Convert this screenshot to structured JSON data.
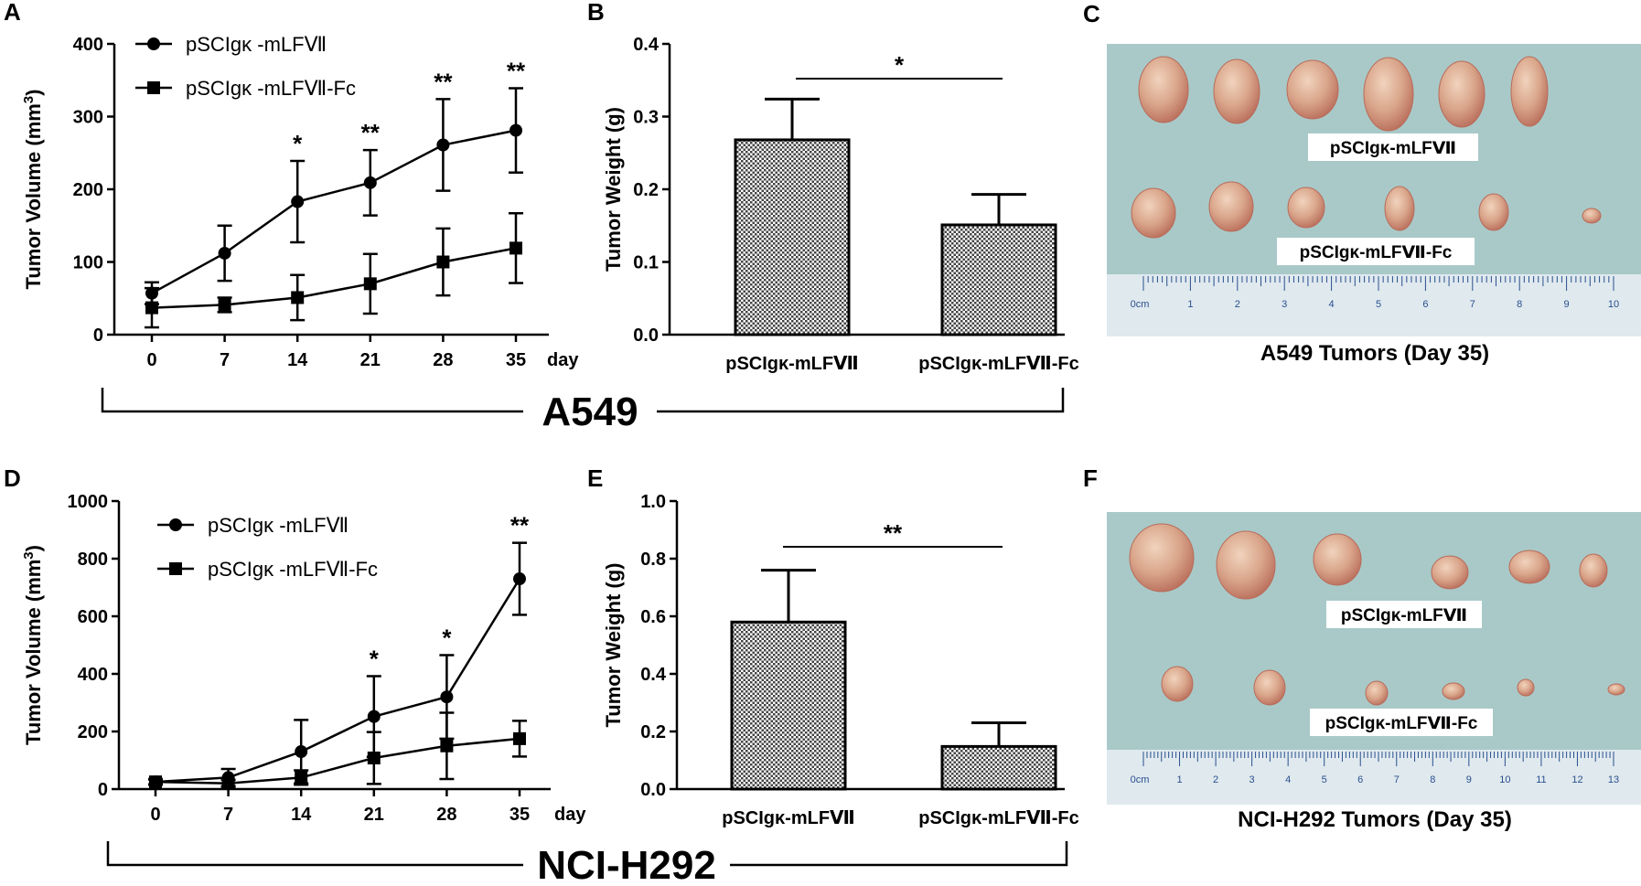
{
  "panels": {
    "A": "A",
    "B": "B",
    "C": "C",
    "D": "D",
    "E": "E",
    "F": "F"
  },
  "group_labels": {
    "top": "A549",
    "bottom": "NCI-H292"
  },
  "photos": {
    "C": {
      "caption": "A549 Tumors (Day 35)",
      "label_top": "pSCIgκ-mLFⅦ",
      "label_bottom": "pSCIgκ-mLFⅦ-Fc",
      "ruler_numbers": [
        "1",
        "2",
        "3",
        "4",
        "5",
        "6",
        "7",
        "8",
        "9",
        "10"
      ],
      "ruler_unit": "0cm",
      "top_row_count": 6,
      "bottom_row_count": 6
    },
    "F": {
      "caption": "NCI-H292 Tumors (Day 35)",
      "label_top": "pSCIgκ-mLFⅦ",
      "label_bottom": "pSCIgκ-mLFⅦ-Fc",
      "ruler_numbers": [
        "1",
        "2",
        "3",
        "4",
        "5",
        "6",
        "7",
        "8",
        "9",
        "10",
        "11",
        "12",
        "13"
      ],
      "ruler_unit": "0cm",
      "top_row_count": 6,
      "bottom_row_count": 6
    }
  },
  "colors": {
    "photo_bg": "#a9c9c8",
    "ruler": "#dfe9ee",
    "ruler_ink": "#2a4f8f",
    "tumor": "#d9a58a",
    "tumor_dark": "#b86c5a"
  },
  "chart_data": [
    {
      "id": "A",
      "type": "line",
      "xlabel": "day",
      "ylabel": "Tumor Volume (mm3)",
      "ylabel_main": "Tumor Volume (mm",
      "ylabel_sup": "3",
      "ylabel_end": ")",
      "x": [
        0,
        7,
        14,
        21,
        28,
        35
      ],
      "ylim": [
        0,
        400
      ],
      "yticks": [
        0,
        100,
        200,
        300,
        400
      ],
      "series": [
        {
          "name": "pSCIgκ -mLFⅦ",
          "marker": "circle",
          "values": [
            57,
            112,
            183,
            209,
            261,
            281
          ],
          "errors": [
            15,
            38,
            56,
            45,
            63,
            58
          ]
        },
        {
          "name": "pSCIgκ -mLFⅦ-Fc",
          "marker": "square",
          "values": [
            37,
            41,
            51,
            70,
            100,
            119
          ],
          "errors": [
            27,
            10,
            31,
            41,
            46,
            48
          ]
        }
      ],
      "significance": [
        "",
        "",
        "*",
        "**",
        "**",
        "**"
      ],
      "grid": false,
      "legend": "top-left"
    },
    {
      "id": "B",
      "type": "bar",
      "ylabel": "Tumor Weight (g)",
      "categories": [
        "pSCIgκ-mLFⅦ",
        "pSCIgκ-mLFⅦ-Fc"
      ],
      "values": [
        0.268,
        0.151
      ],
      "errors": [
        0.056,
        0.042
      ],
      "ylim": [
        0,
        0.4
      ],
      "yticks": [
        "0.0",
        "0.1",
        "0.2",
        "0.3",
        "0.4"
      ],
      "significance": "*",
      "grid": false
    },
    {
      "id": "D",
      "type": "line",
      "xlabel": "day",
      "ylabel": "Tumor Volume (mm3)",
      "ylabel_main": "Tumor Volume (mm",
      "ylabel_sup": "3",
      "ylabel_end": ")",
      "x": [
        0,
        7,
        14,
        21,
        28,
        35
      ],
      "ylim": [
        0,
        1000
      ],
      "yticks": [
        0,
        200,
        400,
        600,
        800,
        1000
      ],
      "series": [
        {
          "name": "pSCIgκ -mLFⅦ",
          "marker": "circle",
          "values": [
            25,
            40,
            130,
            252,
            320,
            730
          ],
          "errors": [
            10,
            30,
            110,
            140,
            145,
            125
          ]
        },
        {
          "name": "pSCIgκ -mLFⅦ-Fc",
          "marker": "square",
          "values": [
            25,
            20,
            40,
            108,
            150,
            175
          ],
          "errors": [
            8,
            12,
            25,
            90,
            115,
            62
          ]
        }
      ],
      "significance": [
        "",
        "",
        "",
        "*",
        "*",
        "**"
      ],
      "grid": false,
      "legend": "top-left"
    },
    {
      "id": "E",
      "type": "bar",
      "ylabel": "Tumor Weight (g)",
      "categories": [
        "pSCIgκ-mLFⅦ",
        "pSCIgκ-mLFⅦ-Fc"
      ],
      "values": [
        0.58,
        0.148
      ],
      "errors": [
        0.18,
        0.082
      ],
      "ylim": [
        0,
        1.0
      ],
      "yticks": [
        "0.0",
        "0.2",
        "0.4",
        "0.6",
        "0.8",
        "1.0"
      ],
      "significance": "**",
      "grid": false
    }
  ]
}
